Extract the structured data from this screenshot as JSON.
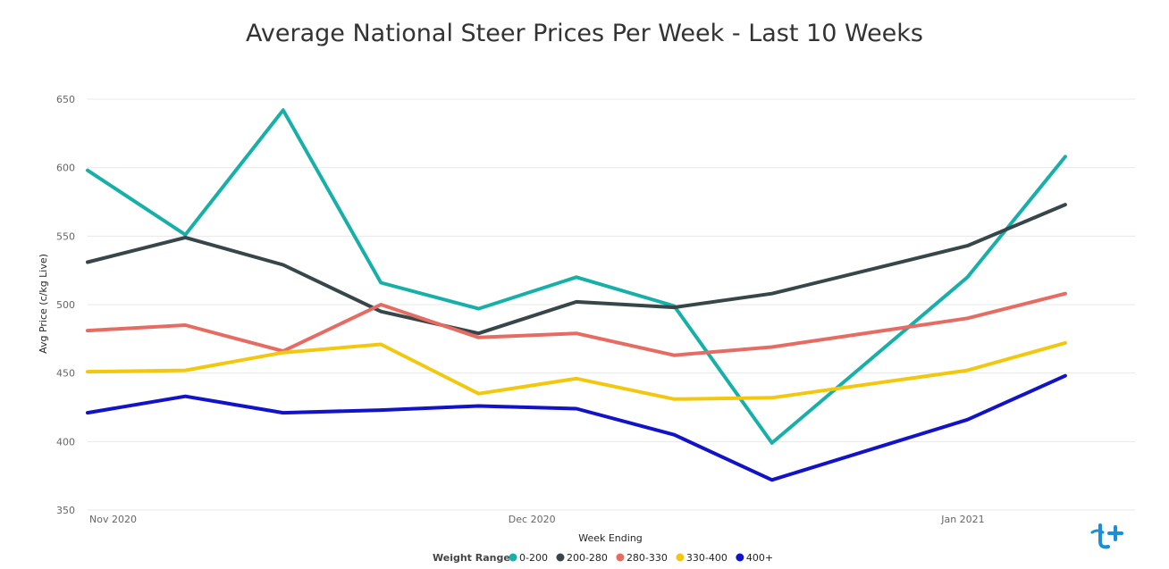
{
  "chart_data": {
    "type": "line",
    "title": "Average National Steer Prices Per Week - Last 10 Weeks",
    "xlabel": "Week Ending",
    "ylabel": "Avg Price (c/kg Live)",
    "ylim": [
      350,
      650
    ],
    "yticks": [
      350,
      400,
      450,
      500,
      550,
      600,
      650
    ],
    "xlim": [
      "2020-11-01",
      "2021-01-15"
    ],
    "x_ticks": [
      {
        "date": "2020-11-01",
        "label": "Nov 2020"
      },
      {
        "date": "2020-12-01",
        "label": "Dec 2020"
      },
      {
        "date": "2021-01-01",
        "label": "Jan 2021"
      }
    ],
    "x": [
      "2020-11-01",
      "2020-11-08",
      "2020-11-15",
      "2020-11-22",
      "2020-11-29",
      "2020-12-06",
      "2020-12-13",
      "2020-12-20",
      "2021-01-03",
      "2021-01-10"
    ],
    "grid": true,
    "legend": {
      "title": "Weight Range",
      "position": "bottom-center"
    },
    "series": [
      {
        "name": "0-200",
        "color": "#17b0a8",
        "values": [
          598,
          551,
          642,
          516,
          497,
          520,
          499,
          399,
          520,
          608
        ]
      },
      {
        "name": "200-280",
        "color": "#374649",
        "values": [
          531,
          549,
          529,
          495,
          479,
          502,
          498,
          508,
          543,
          573
        ]
      },
      {
        "name": "280-330",
        "color": "#e66c63",
        "values": [
          481,
          485,
          466,
          500,
          476,
          479,
          463,
          469,
          490,
          508
        ]
      },
      {
        "name": "330-400",
        "color": "#f2c80f",
        "values": [
          451,
          452,
          465,
          471,
          435,
          446,
          431,
          432,
          452,
          472
        ]
      },
      {
        "name": "400+",
        "color": "#1212c8",
        "values": [
          421,
          433,
          421,
          423,
          426,
          424,
          405,
          372,
          416,
          448
        ]
      }
    ]
  }
}
